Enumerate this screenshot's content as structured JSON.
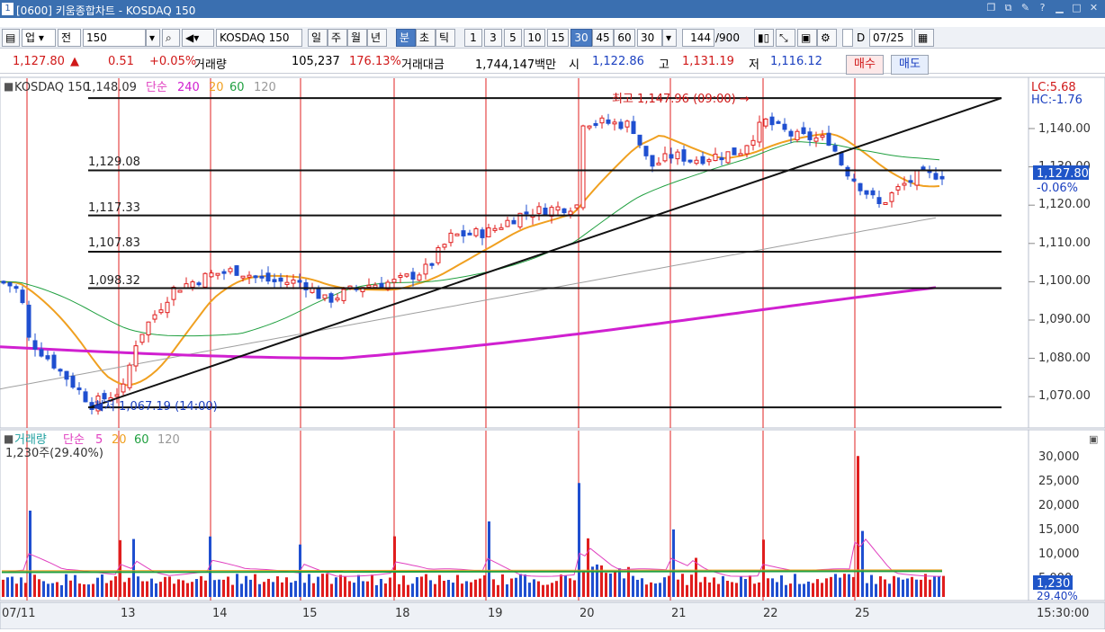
{
  "window": {
    "number": "1",
    "title": "[0600] 키움종합차트 - KOSDAQ 150",
    "controls": [
      "restore-icon",
      "tile-icon",
      "pin-icon",
      "help-icon",
      "minimize-icon",
      "maximize-icon",
      "close-icon"
    ]
  },
  "toolbar": {
    "market_select": "업",
    "search_type": "전",
    "code_value": "150",
    "name_value": "KOSDAQ 150",
    "period_buttons": [
      "일",
      "주",
      "월",
      "년",
      "분",
      "초",
      "틱"
    ],
    "active_period": "분",
    "interval_buttons": [
      "1",
      "3",
      "5",
      "10",
      "15",
      "30",
      "45",
      "60"
    ],
    "active_interval": "30",
    "interval_select": "30",
    "count_value": "144",
    "count_total": "/900",
    "d_label": "D",
    "date_value": "07/25"
  },
  "infobar": {
    "price": "1,127.80",
    "change": "0.51",
    "change_pct": "+0.05%",
    "volume_label": "거래량",
    "volume": "105,237",
    "volume_pct": "176.13%",
    "amount_label": "거래대금",
    "amount": "1,744,147백만",
    "open_label": "시",
    "open": "1,122.86",
    "high_label": "고",
    "high": "1,131.19",
    "low_label": "저",
    "low": "1,116.12",
    "buy_label": "매수",
    "sell_label": "매도"
  },
  "price_panel": {
    "legend_name": "KOSDAQ 150",
    "legend_ma": "단순",
    "legend_periods": [
      "240",
      "20",
      "60",
      "120"
    ],
    "legend_overlap": "1,148.09",
    "lc_label": "LC:5.68",
    "hc_label": "HC:-1.76",
    "high_annotation": "최고 1,147.96 (09:00) →",
    "low_annotation": "최저 1,067.19 (14:00)",
    "current_price": "1,127.80",
    "current_pct": "-0.06%",
    "fib_labels": [
      "1,129.08",
      "1,117.33",
      "1,107.83",
      "1,098.32"
    ],
    "y_ticks": [
      "1,140.00",
      "1,130.00",
      "1,120.00",
      "1,110.00",
      "1,100.00",
      "1,090.00",
      "1,080.00",
      "1,070.00"
    ]
  },
  "volume_panel": {
    "legend_name": "거래량",
    "legend_ma": "단순",
    "legend_periods": [
      "5",
      "20",
      "60",
      "120"
    ],
    "legend_value": "1,230주(29.40%)",
    "current_value": "1,230",
    "current_pct": "29.40%",
    "overlap_tick": "5,000",
    "y_ticks": [
      "30,000",
      "25,000",
      "20,000",
      "15,000",
      "10,000"
    ]
  },
  "x_axis": {
    "labels": [
      "07/11",
      "13",
      "14",
      "15",
      "18",
      "19",
      "20",
      "21",
      "22",
      "25"
    ],
    "time_label": "15:30:00"
  },
  "colors": {
    "up": "#e01e1e",
    "down": "#1f4fd0",
    "ma5": "#e040c0",
    "ma20": "#f0a020",
    "ma60": "#20a040",
    "ma120": "#a0a0a0",
    "ma240": "#d020d0"
  }
}
